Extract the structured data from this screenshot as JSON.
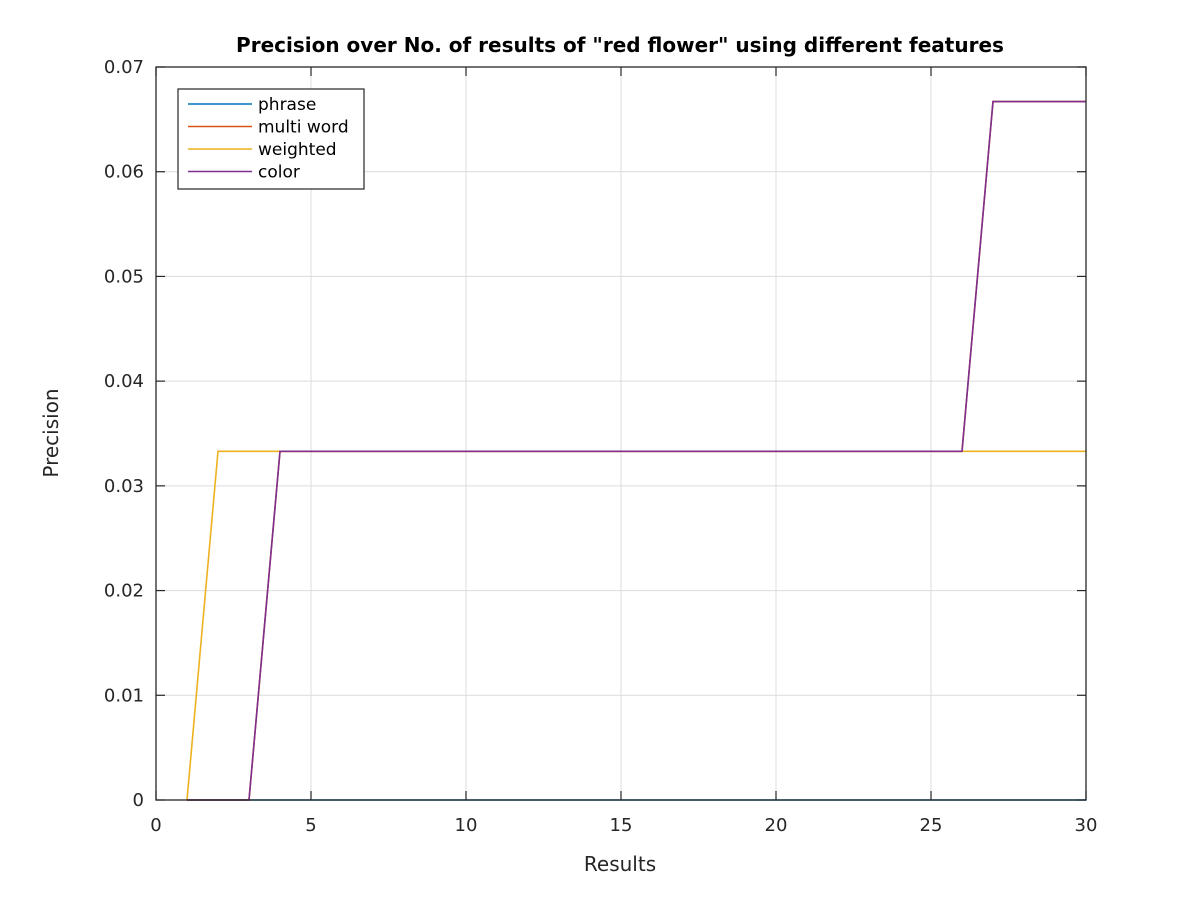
{
  "chart_data": {
    "type": "line",
    "title": "Precision over No. of results of \"red flower\" using different features",
    "xlabel": "Results",
    "ylabel": "Precision",
    "xlim": [
      0,
      30
    ],
    "ylim": [
      0,
      0.07
    ],
    "xticks": [
      0,
      5,
      10,
      15,
      20,
      25,
      30
    ],
    "xtick_labels": [
      "0",
      "5",
      "10",
      "15",
      "20",
      "25",
      "30"
    ],
    "yticks": [
      0,
      0.01,
      0.02,
      0.03,
      0.04,
      0.05,
      0.06,
      0.07
    ],
    "ytick_labels": [
      "0",
      "0.01",
      "0.02",
      "0.03",
      "0.04",
      "0.05",
      "0.06",
      "0.07"
    ],
    "grid": true,
    "legend_position": "top-left",
    "series": [
      {
        "name": "phrase",
        "color": "#0072BD",
        "x": [
          1,
          2,
          3,
          4,
          5,
          6,
          7,
          8,
          9,
          10,
          11,
          12,
          13,
          14,
          15,
          16,
          17,
          18,
          19,
          20,
          21,
          22,
          23,
          24,
          25,
          26,
          27,
          28,
          29,
          30
        ],
        "y": [
          0,
          0,
          0,
          0,
          0,
          0,
          0,
          0,
          0,
          0,
          0,
          0,
          0,
          0,
          0,
          0,
          0,
          0,
          0,
          0,
          0,
          0,
          0,
          0,
          0,
          0,
          0,
          0,
          0,
          0
        ]
      },
      {
        "name": "multi word",
        "color": "#D95319",
        "x": [
          1,
          2,
          3,
          4,
          5,
          6,
          7,
          8,
          9,
          10,
          11,
          12,
          13,
          14,
          15,
          16,
          17,
          18,
          19,
          20,
          21,
          22,
          23,
          24,
          25,
          26,
          27,
          28,
          29,
          30
        ],
        "y": [
          0,
          0,
          0,
          0.0333,
          0.0333,
          0.0333,
          0.0333,
          0.0333,
          0.0333,
          0.0333,
          0.0333,
          0.0333,
          0.0333,
          0.0333,
          0.0333,
          0.0333,
          0.0333,
          0.0333,
          0.0333,
          0.0333,
          0.0333,
          0.0333,
          0.0333,
          0.0333,
          0.0333,
          0.0333,
          0.0667,
          0.0667,
          0.0667,
          0.0667
        ]
      },
      {
        "name": "weighted",
        "color": "#EDB120",
        "x": [
          1,
          2,
          3,
          4,
          5,
          6,
          7,
          8,
          9,
          10,
          11,
          12,
          13,
          14,
          15,
          16,
          17,
          18,
          19,
          20,
          21,
          22,
          23,
          24,
          25,
          26,
          27,
          28,
          29,
          30
        ],
        "y": [
          0,
          0.0333,
          0.0333,
          0.0333,
          0.0333,
          0.0333,
          0.0333,
          0.0333,
          0.0333,
          0.0333,
          0.0333,
          0.0333,
          0.0333,
          0.0333,
          0.0333,
          0.0333,
          0.0333,
          0.0333,
          0.0333,
          0.0333,
          0.0333,
          0.0333,
          0.0333,
          0.0333,
          0.0333,
          0.0333,
          0.0333,
          0.0333,
          0.0333,
          0.0333
        ]
      },
      {
        "name": "color",
        "color": "#7E2F8E",
        "x": [
          1,
          2,
          3,
          4,
          5,
          6,
          7,
          8,
          9,
          10,
          11,
          12,
          13,
          14,
          15,
          16,
          17,
          18,
          19,
          20,
          21,
          22,
          23,
          24,
          25,
          26,
          27,
          28,
          29,
          30
        ],
        "y": [
          0,
          0,
          0,
          0.0333,
          0.0333,
          0.0333,
          0.0333,
          0.0333,
          0.0333,
          0.0333,
          0.0333,
          0.0333,
          0.0333,
          0.0333,
          0.0333,
          0.0333,
          0.0333,
          0.0333,
          0.0333,
          0.0333,
          0.0333,
          0.0333,
          0.0333,
          0.0333,
          0.0333,
          0.0333,
          0.0667,
          0.0667,
          0.0667,
          0.0667
        ]
      }
    ]
  }
}
